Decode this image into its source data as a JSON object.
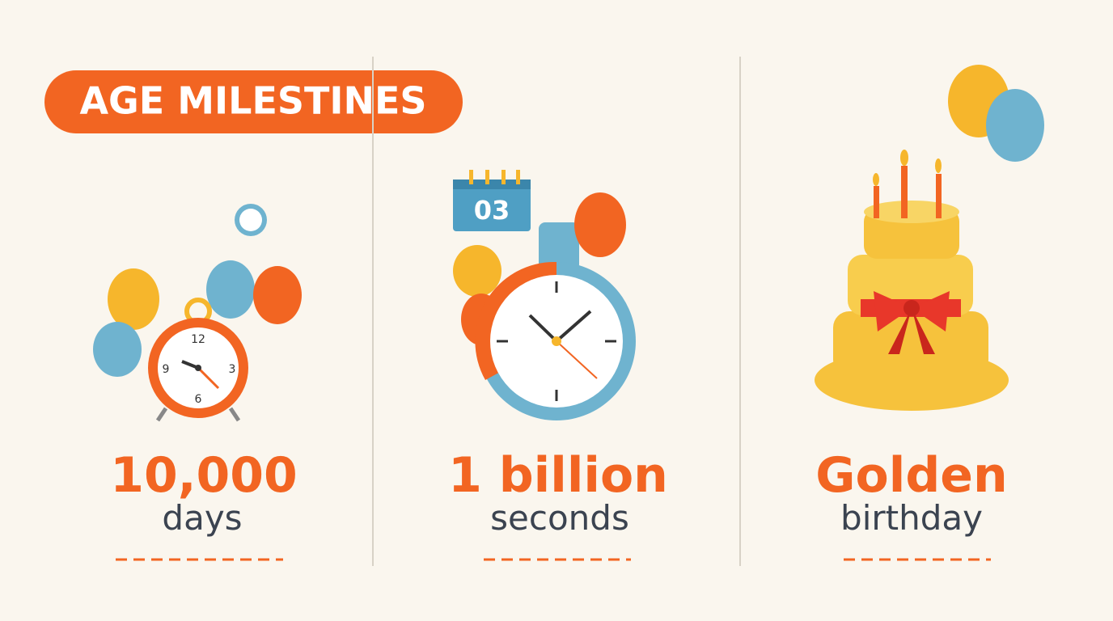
{
  "title": "AGE MILESTINES",
  "milestones": [
    {
      "headline": "10,000",
      "subline": "days",
      "clock_numbers": [
        "12",
        "3",
        "6",
        "9"
      ]
    },
    {
      "headline": "1 billion",
      "subline": "seconds",
      "calendar_date": "03"
    },
    {
      "headline": "Golden",
      "subline": "birthday"
    }
  ]
}
